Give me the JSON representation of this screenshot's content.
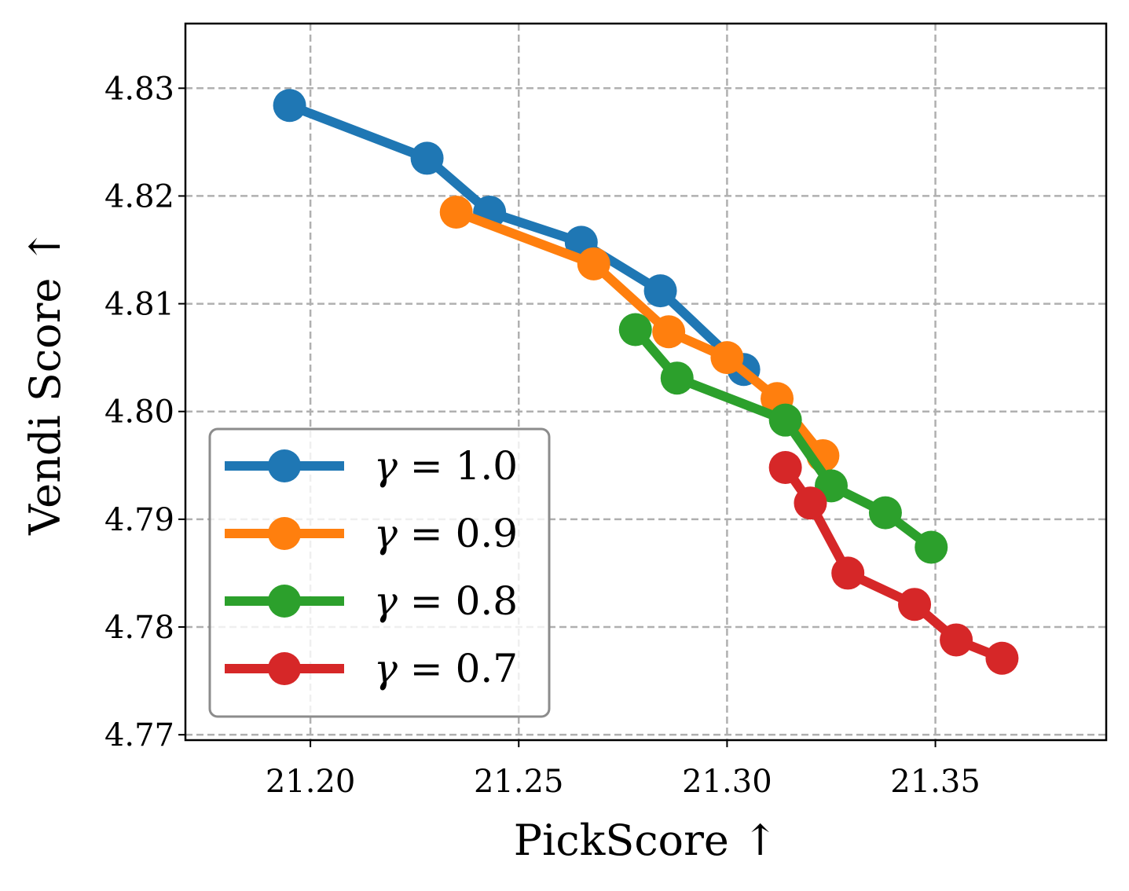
{
  "chart_data": {
    "type": "line",
    "title": "",
    "xlabel": "PickScore ↑",
    "ylabel": "Vendi Score ↑",
    "xlim": [
      21.17,
      21.391
    ],
    "ylim": [
      4.7695,
      4.836
    ],
    "xticks": [
      21.2,
      21.25,
      21.3,
      21.35
    ],
    "xtick_labels": [
      "21.20",
      "21.25",
      "21.30",
      "21.35"
    ],
    "yticks": [
      4.77,
      4.78,
      4.79,
      4.8,
      4.81,
      4.82,
      4.83
    ],
    "ytick_labels": [
      "4.77",
      "4.78",
      "4.79",
      "4.80",
      "4.81",
      "4.82",
      "4.83"
    ],
    "grid": true,
    "legend_position": "lower-left",
    "series": [
      {
        "name": "γ = 1.0",
        "symbol": "γ",
        "value_text": "= 1.0",
        "color": "#1f77b4",
        "x": [
          21.195,
          21.228,
          21.243,
          21.265,
          21.284,
          21.304
        ],
        "y": [
          4.8284,
          4.8235,
          4.8185,
          4.8157,
          4.8112,
          4.8039
        ]
      },
      {
        "name": "γ = 0.9",
        "symbol": "γ",
        "value_text": "= 0.9",
        "color": "#ff7f0e",
        "x": [
          21.235,
          21.268,
          21.286,
          21.3,
          21.312,
          21.323
        ],
        "y": [
          4.8185,
          4.8137,
          4.8074,
          4.805,
          4.8012,
          4.7959
        ]
      },
      {
        "name": "γ = 0.8",
        "symbol": "γ",
        "value_text": "= 0.8",
        "color": "#2ca02c",
        "x": [
          21.278,
          21.288,
          21.314,
          21.325,
          21.338,
          21.349
        ],
        "y": [
          4.8076,
          4.8031,
          4.7992,
          4.7931,
          4.7906,
          4.7874
        ]
      },
      {
        "name": "γ = 0.7",
        "symbol": "γ",
        "value_text": "= 0.7",
        "color": "#d62728",
        "x": [
          21.314,
          21.32,
          21.329,
          21.345,
          21.355,
          21.366
        ],
        "y": [
          4.7948,
          4.7915,
          4.785,
          4.7821,
          4.7788,
          4.7771
        ]
      }
    ]
  }
}
